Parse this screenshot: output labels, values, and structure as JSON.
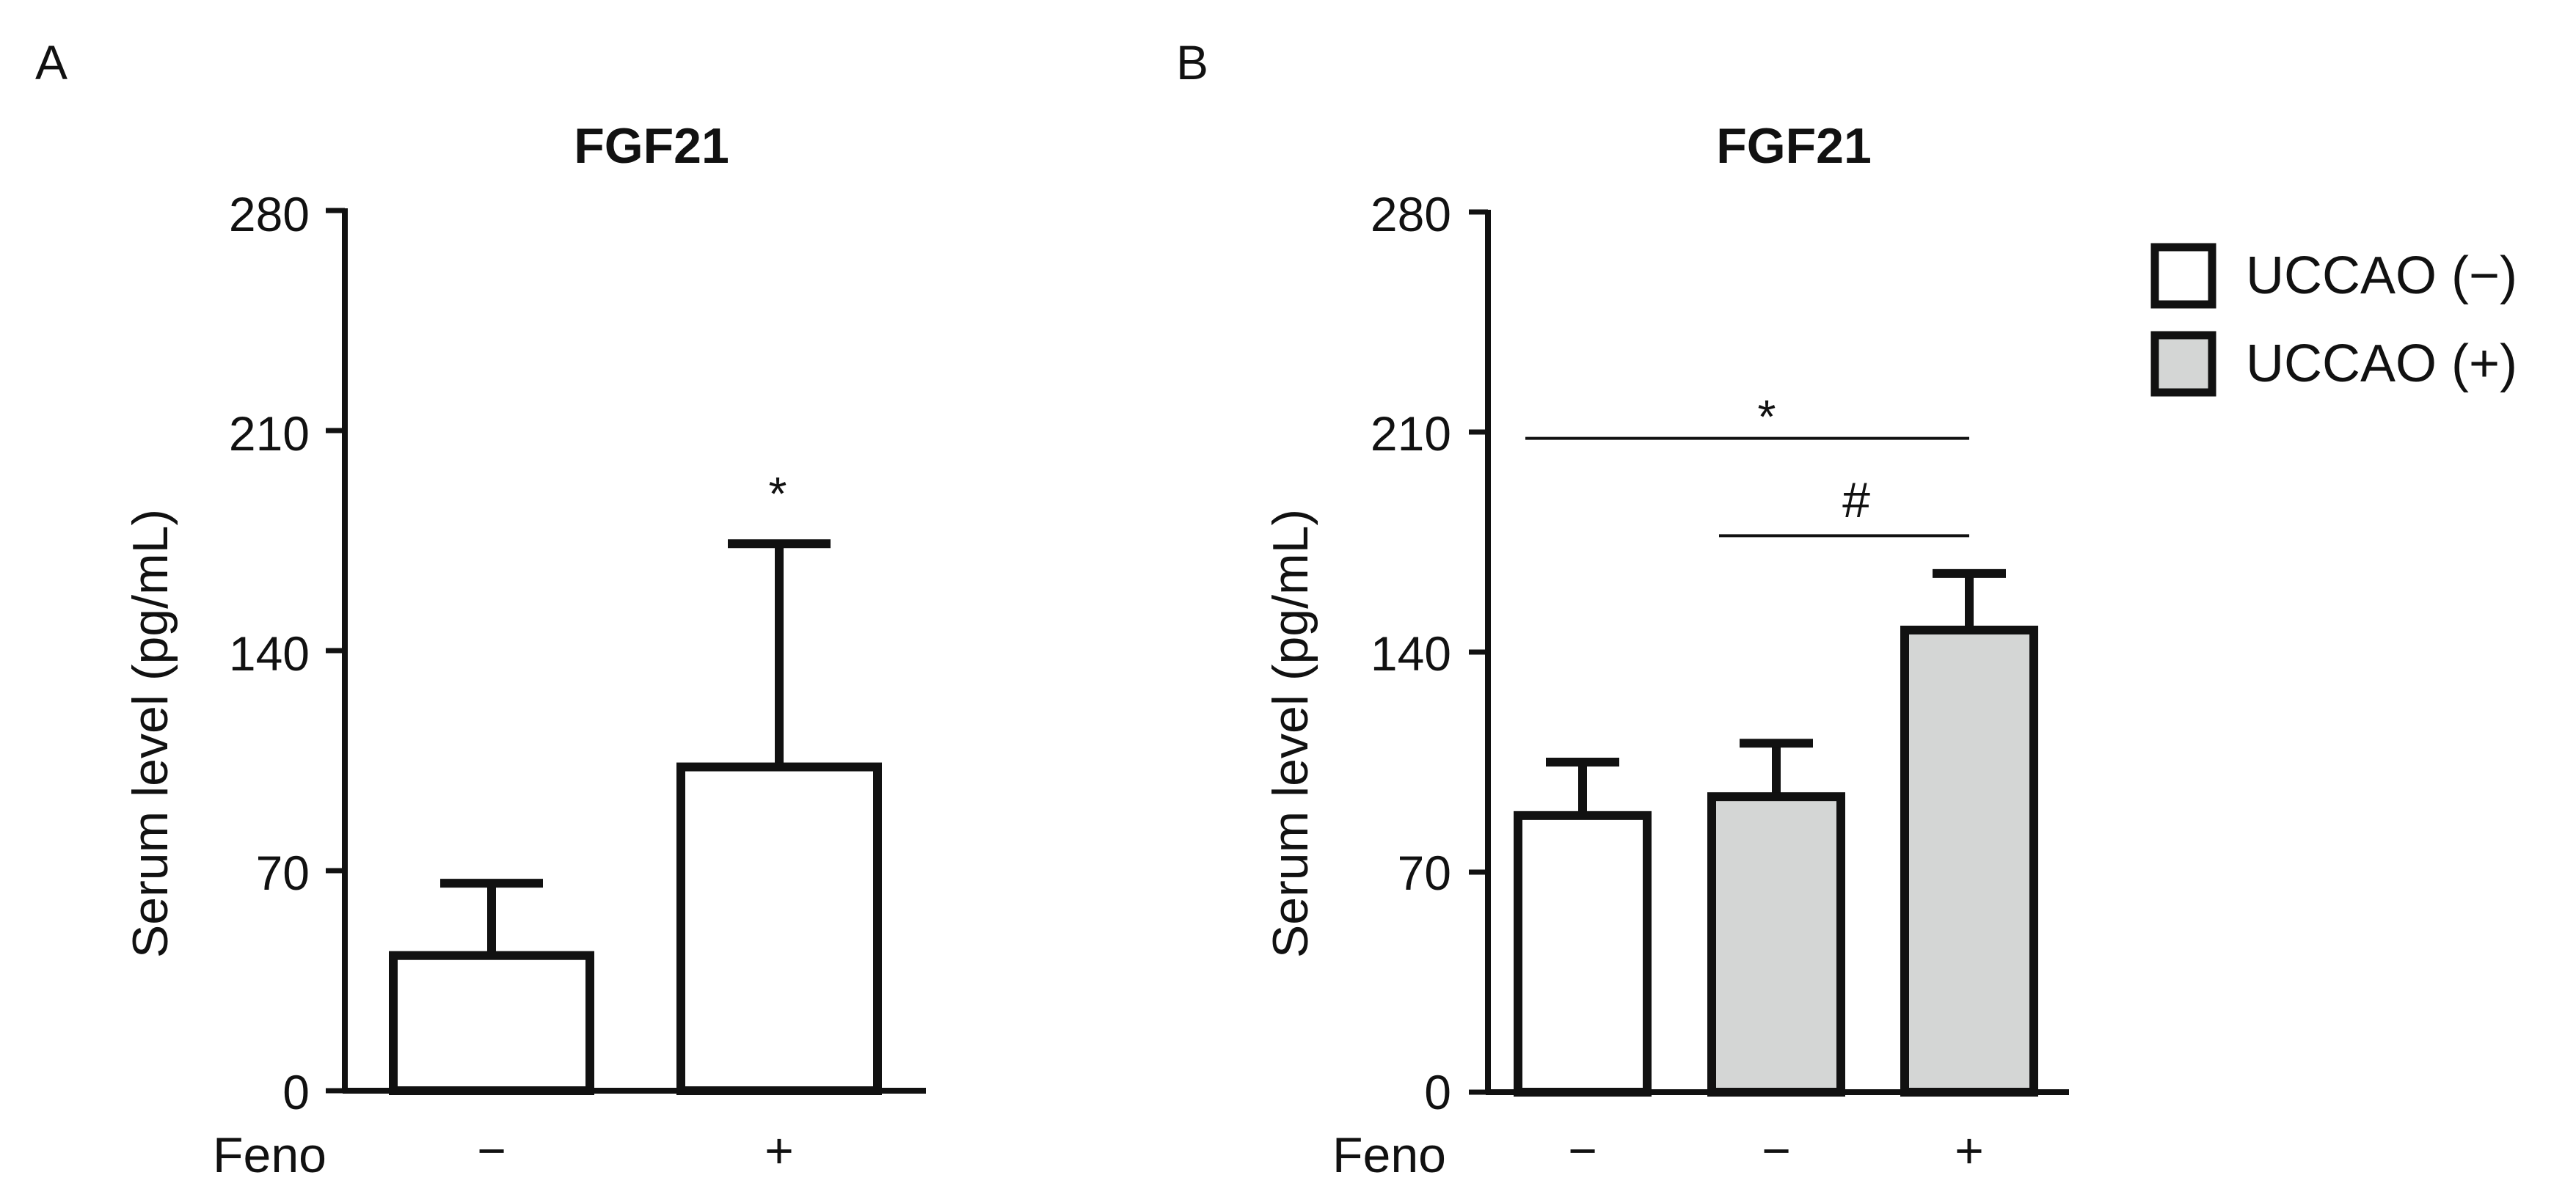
{
  "chart_data": [
    {
      "panel_label": "A",
      "type": "bar",
      "title": "FGF21",
      "ylabel": "Serum level (pg/mL)",
      "ylim": [
        0,
        280
      ],
      "yticks": [
        0,
        70,
        140,
        210,
        280
      ],
      "row_label": "Feno",
      "categories": [
        "−",
        "+"
      ],
      "series": [
        {
          "values": [
            43,
            103
          ],
          "errors": [
            66,
            174
          ],
          "fills": [
            "#ffffff",
            "#ffffff"
          ]
        }
      ],
      "annotations": [
        {
          "text": "*",
          "bar": 1,
          "type": "above_error"
        }
      ]
    },
    {
      "panel_label": "B",
      "type": "bar",
      "title": "FGF21",
      "ylabel": "Serum level (pg/mL)",
      "ylim": [
        0,
        280
      ],
      "yticks": [
        0,
        70,
        140,
        210,
        280
      ],
      "row_label": "Feno",
      "categories": [
        "−",
        "−",
        "+"
      ],
      "series": [
        {
          "values": [
            88,
            94,
            147
          ],
          "errors": [
            105,
            111,
            165
          ],
          "fills": [
            "#ffffff",
            "#d4d6d5",
            "#d4d6d5"
          ]
        }
      ],
      "annotations": [
        {
          "text": "*",
          "from_bar": 0,
          "to_bar": 2,
          "y": 208,
          "type": "bracket"
        },
        {
          "text": "#",
          "from_bar": 1,
          "to_bar": 2,
          "y": 177,
          "type": "bracket"
        }
      ],
      "legend": {
        "placement": "right",
        "items": [
          {
            "label": "UCCAO (−)",
            "color": "#ffffff"
          },
          {
            "label": "UCCAO (+)",
            "color": "#d4d6d5"
          }
        ]
      }
    }
  ]
}
